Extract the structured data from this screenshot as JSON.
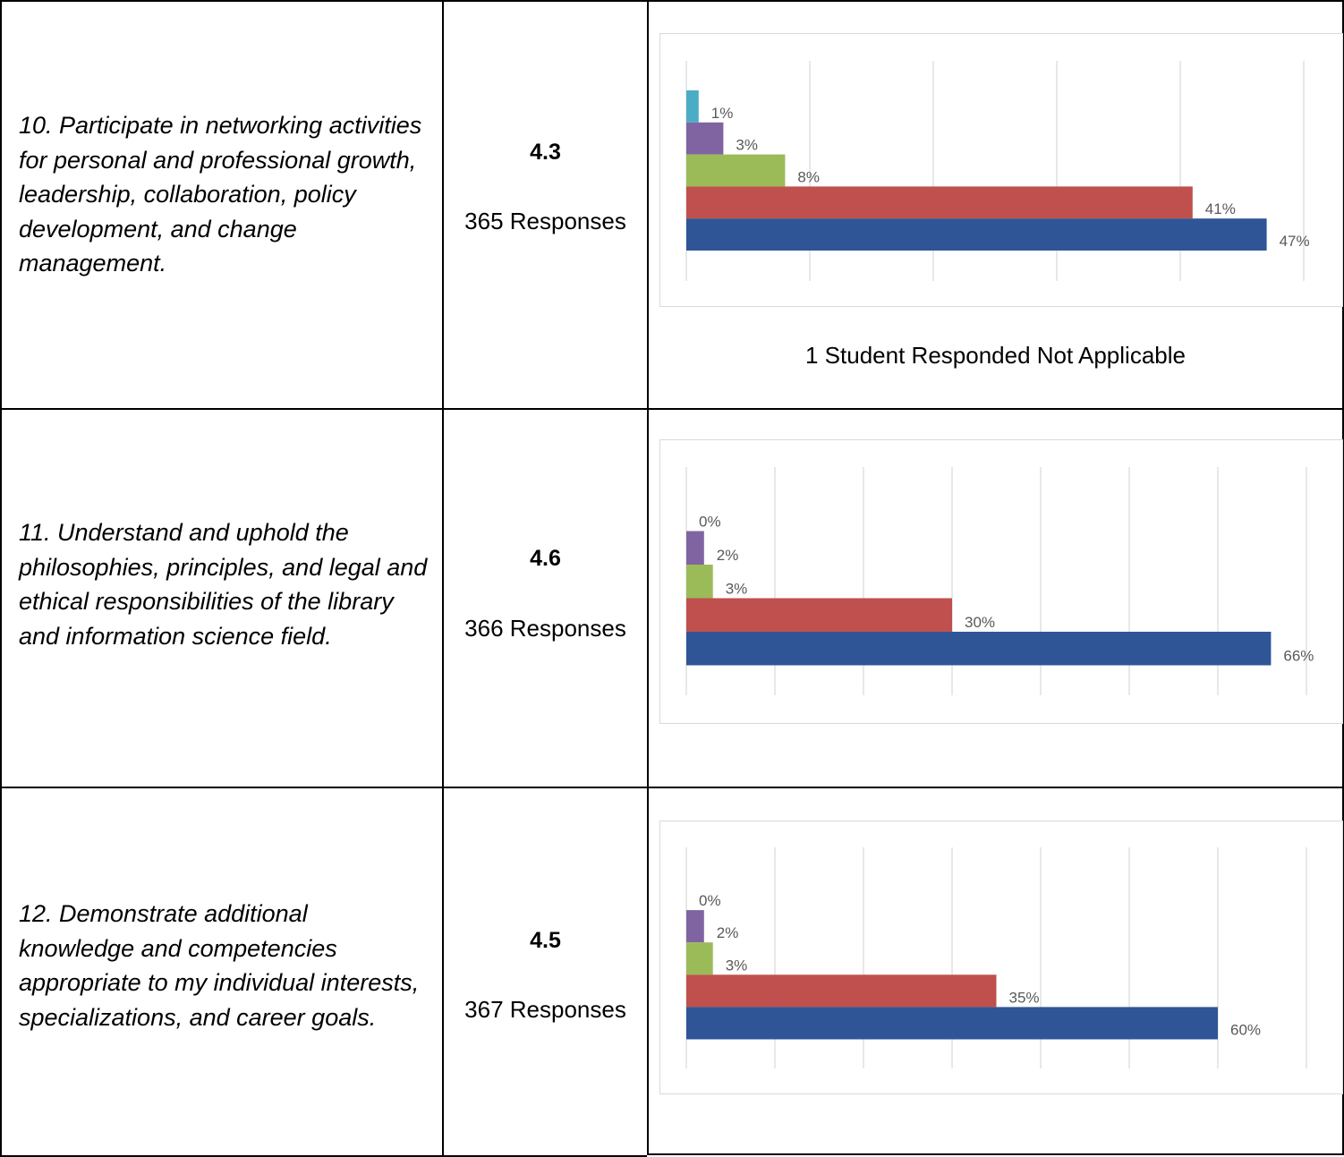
{
  "colors": {
    "cyan": "#4bacc6",
    "purple": "#8064a2",
    "green": "#9bbb59",
    "red": "#c0504d",
    "blue": "#2f5597"
  },
  "rows": [
    {
      "statement": "10. Participate in networking activities for personal and professional growth, leadership, collaboration, policy development, and change management.",
      "score": "4.3",
      "responses": "365 Responses",
      "note": "1 Student Responded Not Applicable"
    },
    {
      "statement": "11. Understand and uphold the philosophies, principles, and legal and ethical responsibilities of the library and information science field.",
      "score": "4.6",
      "responses": "366 Responses",
      "note": ""
    },
    {
      "statement": "12. Demonstrate additional knowledge and competencies appropriate to my individual interests, specializations, and career goals.",
      "score": "4.5",
      "responses": "367 Responses",
      "note": ""
    }
  ],
  "chart_data": [
    {
      "type": "bar",
      "orientation": "horizontal",
      "xlim": [
        0,
        50
      ],
      "grid": true,
      "bars": [
        {
          "value": 1,
          "label": "1%",
          "color": "cyan"
        },
        {
          "value": 3,
          "label": "3%",
          "color": "purple"
        },
        {
          "value": 8,
          "label": "8%",
          "color": "green"
        },
        {
          "value": 41,
          "label": "41%",
          "color": "red"
        },
        {
          "value": 47,
          "label": "47%",
          "color": "blue"
        }
      ]
    },
    {
      "type": "bar",
      "orientation": "horizontal",
      "xlim": [
        0,
        70
      ],
      "grid": true,
      "bars": [
        {
          "value": 0,
          "label": "0%",
          "color": "cyan"
        },
        {
          "value": 2,
          "label": "2%",
          "color": "purple"
        },
        {
          "value": 3,
          "label": "3%",
          "color": "green"
        },
        {
          "value": 30,
          "label": "30%",
          "color": "red"
        },
        {
          "value": 66,
          "label": "66%",
          "color": "blue"
        }
      ]
    },
    {
      "type": "bar",
      "orientation": "horizontal",
      "xlim": [
        0,
        70
      ],
      "grid": true,
      "bars": [
        {
          "value": 0,
          "label": "0%",
          "color": "cyan"
        },
        {
          "value": 2,
          "label": "2%",
          "color": "purple"
        },
        {
          "value": 3,
          "label": "3%",
          "color": "green"
        },
        {
          "value": 35,
          "label": "35%",
          "color": "red"
        },
        {
          "value": 60,
          "label": "60%",
          "color": "blue"
        }
      ]
    }
  ]
}
